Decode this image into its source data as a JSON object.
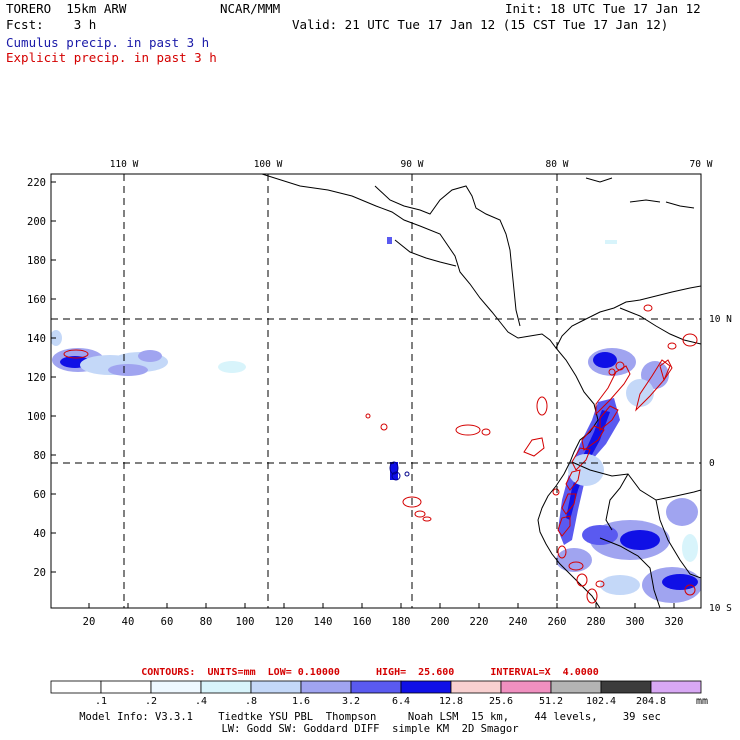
{
  "header": {
    "model": "TORERO  15km ARW",
    "center": "NCAR/MMM",
    "init": "Init: 18 UTC Tue 17 Jan 12",
    "fcst": "Fcst:    3 h",
    "valid": "Valid: 21 UTC Tue 17 Jan 12 (15 CST Tue 17 Jan 12)",
    "cumulus": "Cumulus precip. in past 3 h",
    "explicit": "Explicit precip. in past 3 h"
  },
  "axes": {
    "top_lon_labels": [
      "110 W",
      "100 W",
      "90 W",
      "80 W",
      "70 W"
    ],
    "right_lat_labels": [
      "10 N",
      "0",
      "10 S"
    ],
    "y_ticks": [
      "20",
      "40",
      "60",
      "80",
      "100",
      "120",
      "140",
      "160",
      "180",
      "200",
      "220"
    ],
    "x_ticks": [
      "20",
      "40",
      "60",
      "80",
      "100",
      "120",
      "140",
      "160",
      "180",
      "200",
      "220",
      "240",
      "260",
      "280",
      "300",
      "320"
    ]
  },
  "contour_info": "CONTOURS:  UNITS=mm  LOW= 0.10000      HIGH=  25.600      INTERVAL=X  4.0000",
  "legend": {
    "labels": [
      ".1",
      ".2",
      ".4",
      ".8",
      "1.6",
      "3.2",
      "6.4",
      "12.8",
      "25.6",
      "51.2",
      "102.4",
      "204.8"
    ],
    "unit": "mm",
    "colors": [
      "#ffffff",
      "#ffffff",
      "#eef8ff",
      "#d8f4fb",
      "#c4d8f8",
      "#a0a4f0",
      "#5a5af0",
      "#1010e6",
      "#f8d0d0",
      "#f090c0",
      "#b4b4b4",
      "#3c3c3c",
      "#d8a8f4"
    ]
  },
  "footer": {
    "line1": "Model Info: V3.3.1    Tiedtke YSU PBL  Thompson     Noah LSM  15 km,    44 levels,    39 sec",
    "line2": "LW: Godd SW: Goddard DIFF  simple KM  2D Smagor"
  }
}
